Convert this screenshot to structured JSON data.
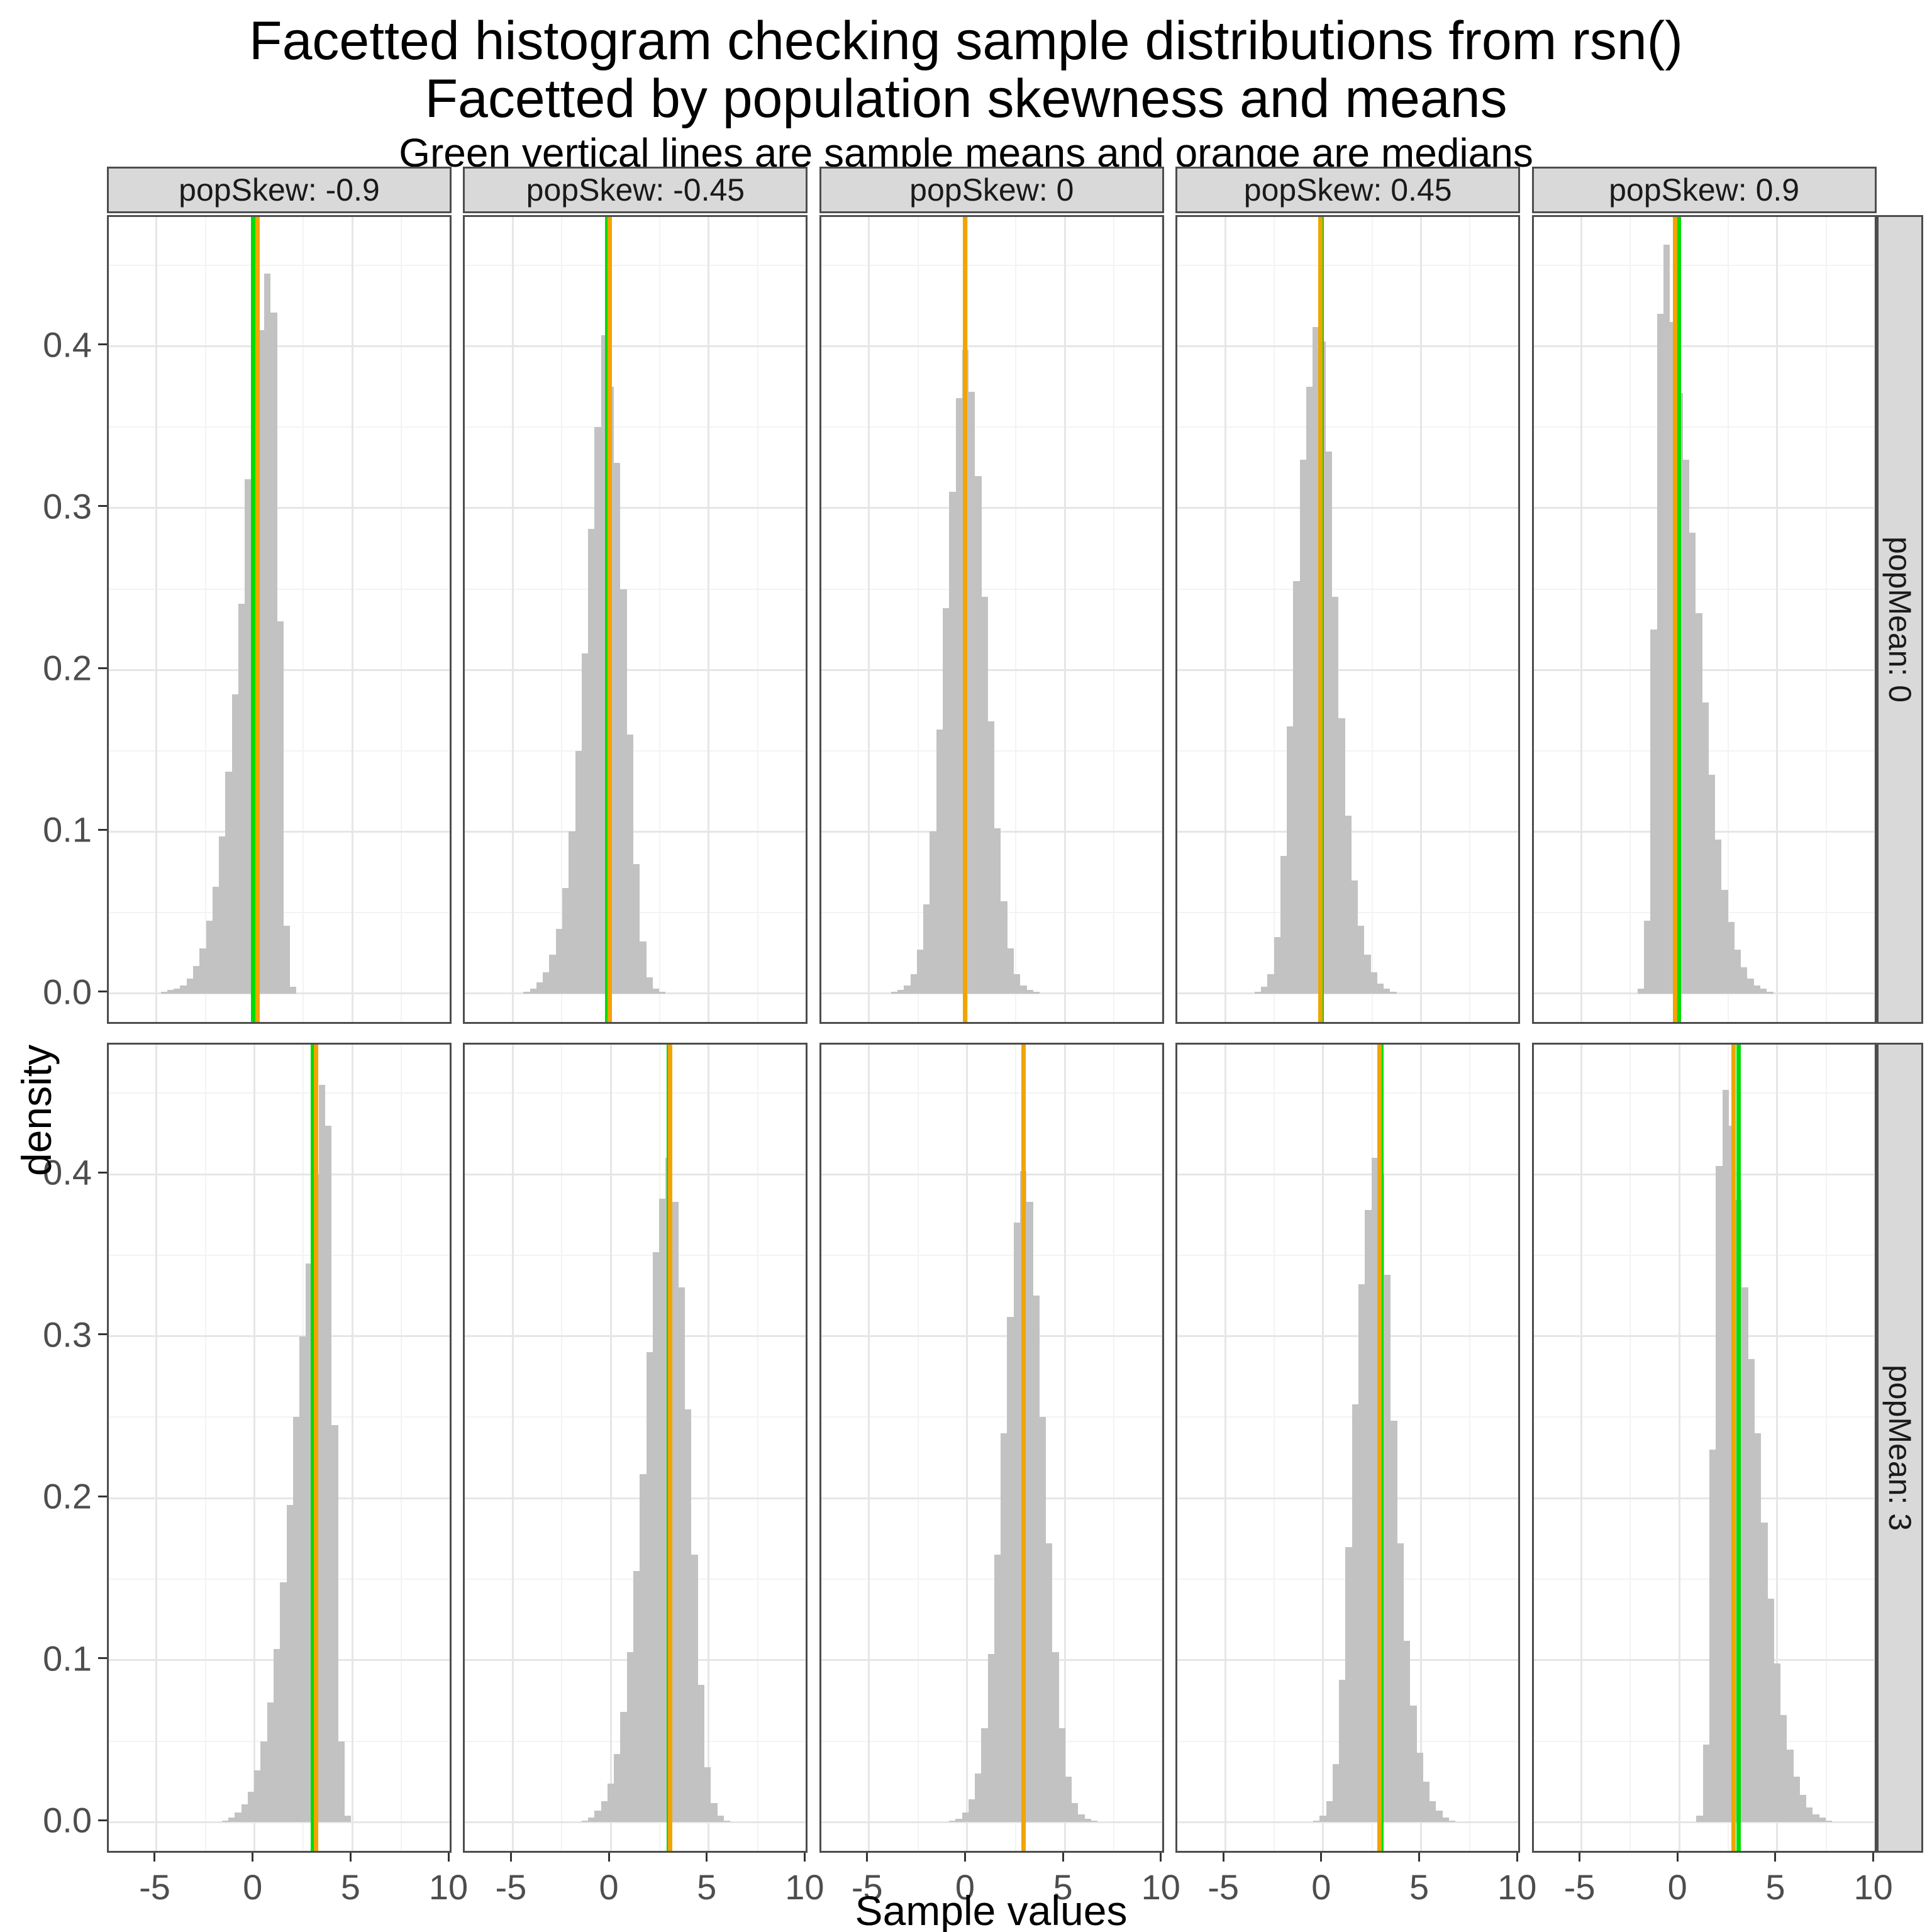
{
  "title_line1": "Facetted histogram checking sample distributions from rsn()",
  "title_line2": "Facetted by population skewness and means",
  "subtitle": "Green vertical lines are sample means and orange are medians",
  "axes": {
    "x_label": "Sample values",
    "y_label": "density",
    "x_tick_labels": [
      "-5",
      "0",
      "5",
      "10"
    ],
    "y_tick_labels": [
      "0.0",
      "0.1",
      "0.2",
      "0.3",
      "0.4"
    ]
  },
  "colors": {
    "bar_fill": "#c2c2c2",
    "mean_line_green": "#00dd00",
    "median_line_orange": "#f0a500",
    "strip_background": "#d9d9d9",
    "panel_border": "#4d4d4d",
    "grid_major": "#e6e6e6",
    "grid_minor": "#f3f3f3",
    "tick_text": "#4d4d4d"
  },
  "chart_data": {
    "type": "histogram",
    "facet_col_labels": [
      "popSkew: -0.9",
      "popSkew: -0.45",
      "popSkew: 0",
      "popSkew: 0.45",
      "popSkew: 0.9"
    ],
    "facet_row_labels": [
      "popMean: 0",
      "popMean: 3"
    ],
    "x_domain": [
      -7.44,
      10.16
    ],
    "y_domain": [
      -0.02,
      0.48
    ],
    "x_major_ticks": [
      -5,
      0,
      5,
      10
    ],
    "x_minor_ticks": [
      -2.5,
      2.5,
      7.5
    ],
    "y_major_ticks": [
      0.0,
      0.1,
      0.2,
      0.3,
      0.4
    ],
    "y_minor_ticks": [
      0.05,
      0.15,
      0.25,
      0.35,
      0.45
    ],
    "binwidth": 0.33,
    "legend_note": "green = sample mean, orange = sample median",
    "facets": [
      {
        "row": "popMean: 0",
        "col": "popSkew: -0.9",
        "mean": -0.06,
        "median": 0.14,
        "x0": -4.62,
        "heights": [
          0.001,
          0.002,
          0.003,
          0.005,
          0.009,
          0.017,
          0.028,
          0.045,
          0.066,
          0.097,
          0.137,
          0.185,
          0.241,
          0.318,
          0.355,
          0.41,
          0.445,
          0.421,
          0.23,
          0.042,
          0.004
        ]
      },
      {
        "row": "popMean: 0",
        "col": "popSkew: -0.45",
        "mean": -0.17,
        "median": -0.04,
        "x0": -4.29,
        "heights": [
          0.001,
          0.003,
          0.007,
          0.013,
          0.024,
          0.04,
          0.065,
          0.1,
          0.15,
          0.21,
          0.287,
          0.35,
          0.407,
          0.375,
          0.328,
          0.25,
          0.16,
          0.08,
          0.032,
          0.01,
          0.003,
          0.001
        ]
      },
      {
        "row": "popMean: 0",
        "col": "popSkew: 0",
        "mean": -0.08,
        "median": -0.08,
        "x0": -3.71,
        "heights": [
          0.001,
          0.002,
          0.005,
          0.012,
          0.027,
          0.055,
          0.1,
          0.163,
          0.238,
          0.31,
          0.368,
          0.398,
          0.372,
          0.32,
          0.245,
          0.168,
          0.102,
          0.057,
          0.028,
          0.012,
          0.005,
          0.002,
          0.001
        ]
      },
      {
        "row": "popMean: 0",
        "col": "popSkew: 0.45",
        "mean": -0.06,
        "median": -0.15,
        "x0": -3.34,
        "heights": [
          0.001,
          0.004,
          0.012,
          0.035,
          0.085,
          0.165,
          0.255,
          0.33,
          0.375,
          0.412,
          0.403,
          0.335,
          0.245,
          0.17,
          0.11,
          0.07,
          0.042,
          0.024,
          0.013,
          0.006,
          0.003,
          0.001
        ]
      },
      {
        "row": "popMean: 0",
        "col": "popSkew: 0.9",
        "mean": -0.02,
        "median": -0.22,
        "x0": -1.97,
        "heights": [
          0.003,
          0.045,
          0.225,
          0.42,
          0.463,
          0.415,
          0.371,
          0.33,
          0.285,
          0.235,
          0.18,
          0.135,
          0.095,
          0.064,
          0.044,
          0.027,
          0.016,
          0.009,
          0.005,
          0.003,
          0.001
        ]
      },
      {
        "row": "popMean: 3",
        "col": "popSkew: -0.9",
        "mean": 2.97,
        "median": 3.14,
        "x0": -1.5,
        "heights": [
          0.001,
          0.003,
          0.006,
          0.011,
          0.019,
          0.032,
          0.05,
          0.074,
          0.107,
          0.148,
          0.196,
          0.25,
          0.3,
          0.345,
          0.4,
          0.455,
          0.43,
          0.245,
          0.05,
          0.004
        ]
      },
      {
        "row": "popMean: 3",
        "col": "popSkew: -0.45",
        "mean": 2.96,
        "median": 3.04,
        "x0": -1.32,
        "heights": [
          0.001,
          0.003,
          0.007,
          0.013,
          0.024,
          0.042,
          0.068,
          0.105,
          0.155,
          0.215,
          0.29,
          0.352,
          0.385,
          0.41,
          0.383,
          0.33,
          0.255,
          0.165,
          0.085,
          0.034,
          0.012,
          0.004,
          0.001
        ]
      },
      {
        "row": "popMean: 3",
        "col": "popSkew: 0",
        "mean": 2.88,
        "median": 2.88,
        "x0": -0.75,
        "heights": [
          0.001,
          0.002,
          0.006,
          0.014,
          0.03,
          0.058,
          0.104,
          0.165,
          0.24,
          0.312,
          0.37,
          0.402,
          0.383,
          0.325,
          0.25,
          0.172,
          0.105,
          0.058,
          0.028,
          0.012,
          0.005,
          0.002,
          0.001
        ]
      },
      {
        "row": "popMean: 3",
        "col": "popSkew: 0.45",
        "mean": 2.96,
        "median": 2.87,
        "x0": -0.34,
        "heights": [
          0.001,
          0.004,
          0.013,
          0.036,
          0.088,
          0.17,
          0.258,
          0.332,
          0.378,
          0.41,
          0.4,
          0.338,
          0.248,
          0.172,
          0.112,
          0.072,
          0.043,
          0.025,
          0.013,
          0.007,
          0.003,
          0.001
        ]
      },
      {
        "row": "popMean: 3",
        "col": "popSkew: 0.9",
        "mean": 3.02,
        "median": 2.78,
        "x0": 1.04,
        "heights": [
          0.004,
          0.048,
          0.23,
          0.405,
          0.452,
          0.43,
          0.384,
          0.33,
          0.286,
          0.24,
          0.185,
          0.138,
          0.098,
          0.066,
          0.045,
          0.028,
          0.017,
          0.009,
          0.005,
          0.003,
          0.001
        ]
      }
    ]
  }
}
